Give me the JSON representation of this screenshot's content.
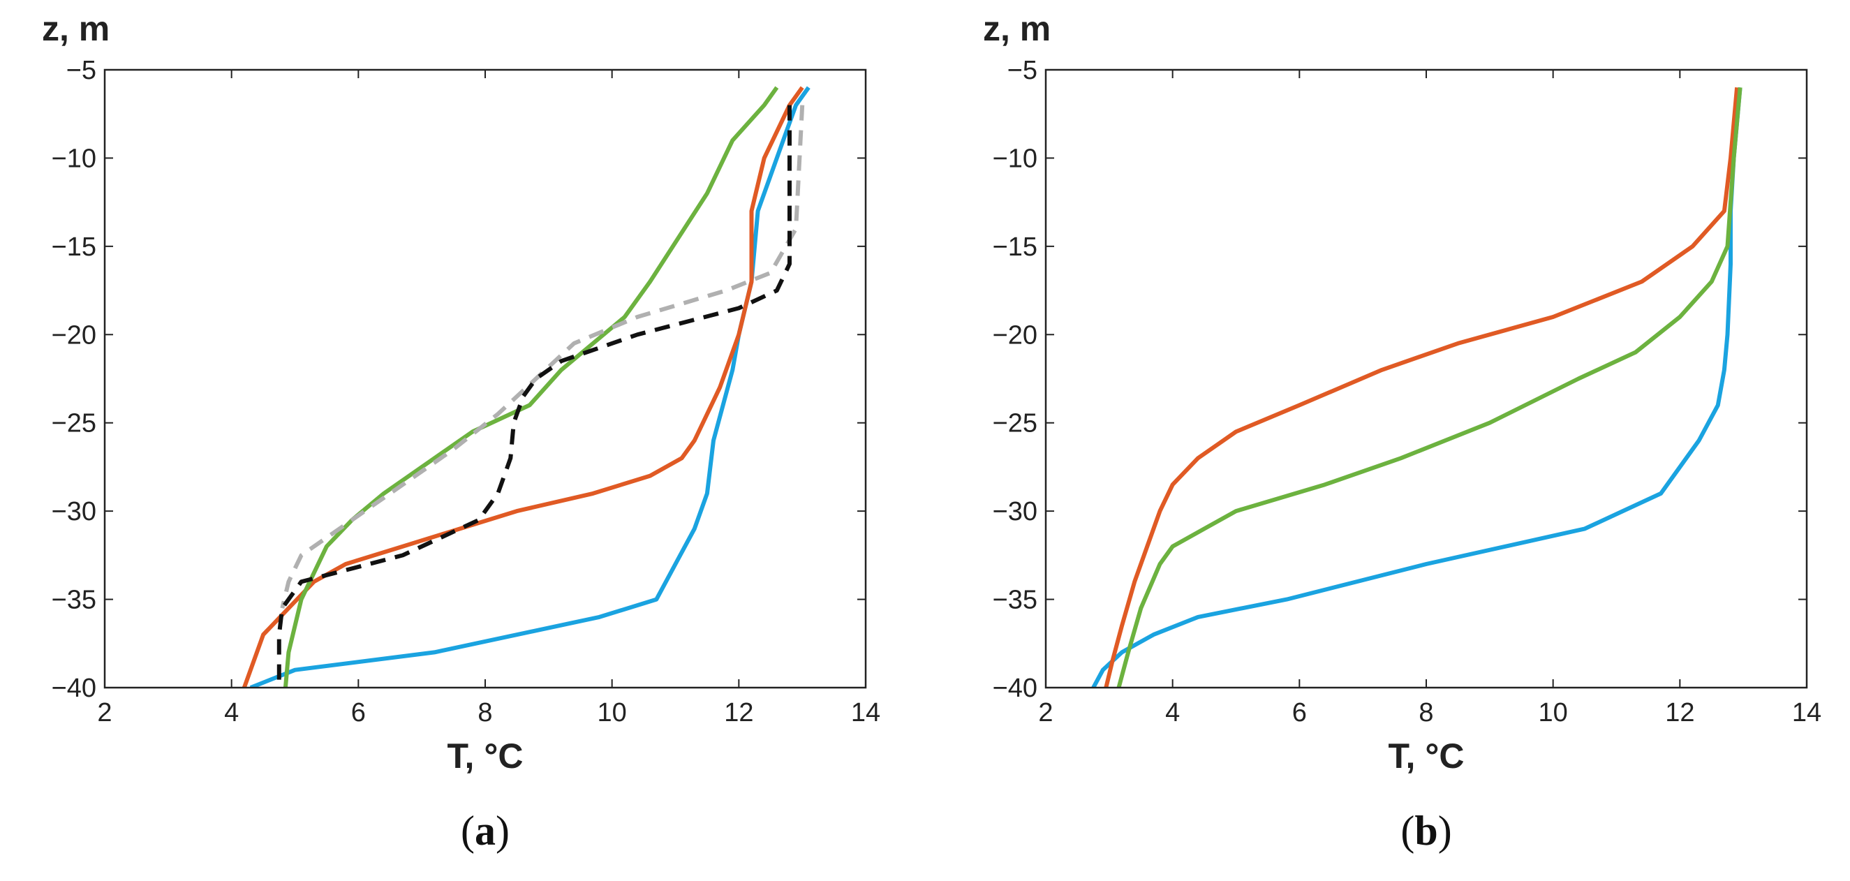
{
  "chart_data": [
    {
      "type": "line",
      "panel_label": "a",
      "xlabel": "T, °C",
      "ylabel": "z, m",
      "xlim": [
        2,
        14
      ],
      "ylim": [
        -40,
        -5
      ],
      "xticks": [
        2,
        4,
        6,
        8,
        10,
        12,
        14
      ],
      "yticks": [
        -5,
        -10,
        -15,
        -20,
        -25,
        -30,
        -35,
        -40
      ],
      "series": [
        {
          "name": "blue",
          "color": "#1aa3e0",
          "style": "solid",
          "x": [
            13.1,
            12.9,
            12.6,
            12.3,
            12.2,
            12.0,
            11.9,
            11.6,
            11.5,
            11.3,
            11.0,
            10.7,
            9.8,
            7.2,
            5.0,
            4.3
          ],
          "y": [
            -6,
            -7,
            -10,
            -13,
            -17,
            -20,
            -22,
            -26,
            -29,
            -31,
            -33,
            -35,
            -36,
            -38,
            -39,
            -40
          ]
        },
        {
          "name": "orange",
          "color": "#e05a24",
          "style": "solid",
          "x": [
            13.0,
            12.8,
            12.4,
            12.2,
            12.2,
            12.0,
            11.7,
            11.3,
            11.1,
            10.6,
            9.7,
            8.5,
            6.7,
            5.8,
            5.3,
            4.9,
            4.5,
            4.2
          ],
          "y": [
            -6,
            -7,
            -10,
            -13,
            -17,
            -20,
            -23,
            -26,
            -27,
            -28,
            -29,
            -30,
            -32,
            -33,
            -34,
            -35.5,
            -37,
            -40
          ]
        },
        {
          "name": "green",
          "color": "#6cb23f",
          "style": "solid",
          "x": [
            12.6,
            12.4,
            11.9,
            11.5,
            10.6,
            10.2,
            9.2,
            8.7,
            7.8,
            6.4,
            5.9,
            5.5,
            5.1,
            4.9,
            4.85
          ],
          "y": [
            -6,
            -7,
            -9,
            -12,
            -17,
            -19,
            -22,
            -24,
            -25.5,
            -29,
            -30.5,
            -32,
            -35,
            -38,
            -40
          ]
        },
        {
          "name": "gray dashed",
          "color": "#b0b0b0",
          "style": "dashed",
          "x": [
            13.0,
            12.9,
            12.5,
            11.8,
            10.4,
            9.4,
            8.8,
            8.2,
            7.5,
            5.9,
            5.1,
            4.9,
            4.8
          ],
          "y": [
            -7,
            -14,
            -16.5,
            -17.5,
            -19,
            -20.5,
            -22.5,
            -24.5,
            -26.5,
            -30.5,
            -32.5,
            -34,
            -35.5
          ]
        },
        {
          "name": "black dashed",
          "color": "#111111",
          "style": "dashed",
          "x": [
            12.8,
            12.8,
            12.6,
            12.0,
            10.4,
            9.2,
            8.8,
            8.6,
            8.45,
            8.4,
            8.2,
            7.9,
            6.7,
            5.1,
            4.8,
            4.75,
            4.75
          ],
          "y": [
            -7,
            -16,
            -17.5,
            -18.5,
            -20,
            -21.5,
            -22.5,
            -23.5,
            -25,
            -27,
            -29,
            -30.5,
            -32.5,
            -34,
            -35.5,
            -37,
            -40
          ]
        }
      ]
    },
    {
      "type": "line",
      "panel_label": "b",
      "xlabel": "T, °C",
      "ylabel": "z, m",
      "xlim": [
        2,
        14
      ],
      "ylim": [
        -40,
        -5
      ],
      "xticks": [
        2,
        4,
        6,
        8,
        10,
        12,
        14
      ],
      "yticks": [
        -5,
        -10,
        -15,
        -20,
        -25,
        -30,
        -35,
        -40
      ],
      "series": [
        {
          "name": "blue",
          "color": "#1aa3e0",
          "style": "solid",
          "x": [
            12.95,
            12.85,
            12.8,
            12.8,
            12.75,
            12.7,
            12.6,
            12.3,
            11.7,
            11.1,
            10.5,
            8.0,
            5.8,
            4.4,
            3.7,
            3.2,
            2.9,
            2.75
          ],
          "y": [
            -6,
            -10,
            -13,
            -16,
            -20,
            -22,
            -24,
            -26,
            -29,
            -30,
            -31,
            -33,
            -35,
            -36,
            -37,
            -38,
            -39,
            -40
          ]
        },
        {
          "name": "orange",
          "color": "#e05a24",
          "style": "solid",
          "x": [
            12.9,
            12.8,
            12.7,
            12.2,
            11.4,
            10.0,
            8.5,
            7.3,
            6.0,
            5.0,
            4.4,
            4.0,
            3.8,
            3.6,
            3.4,
            3.2,
            3.05,
            2.95
          ],
          "y": [
            -6,
            -10,
            -13,
            -15,
            -17,
            -19,
            -20.5,
            -22,
            -24,
            -25.5,
            -27,
            -28.5,
            -30,
            -32,
            -34,
            -36.5,
            -38.5,
            -40
          ]
        },
        {
          "name": "green",
          "color": "#6cb23f",
          "style": "solid",
          "x": [
            12.95,
            12.85,
            12.75,
            12.5,
            12.0,
            11.3,
            10.4,
            9.0,
            7.6,
            6.4,
            5.0,
            4.5,
            4.0,
            3.8,
            3.5,
            3.3,
            3.15
          ],
          "y": [
            -6,
            -10,
            -15,
            -17,
            -19,
            -21,
            -22.5,
            -25,
            -27,
            -28.5,
            -30,
            -31,
            -32,
            -33,
            -35.5,
            -38,
            -40
          ]
        }
      ]
    }
  ]
}
